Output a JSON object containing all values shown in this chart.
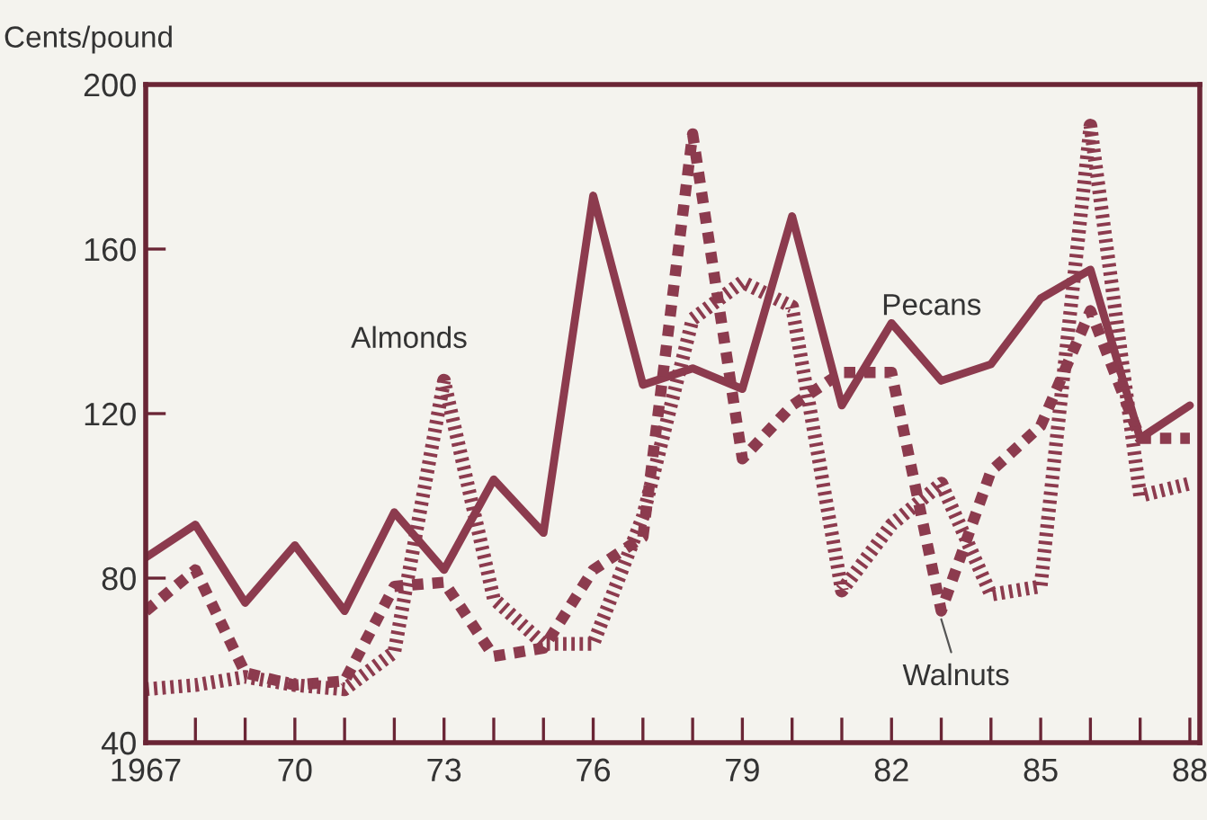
{
  "chart_data": {
    "type": "line",
    "ylabel": "Cents/pound",
    "x": [
      1967,
      1968,
      1969,
      1970,
      1971,
      1972,
      1973,
      1974,
      1975,
      1976,
      1977,
      1978,
      1979,
      1980,
      1981,
      1982,
      1983,
      1984,
      1985,
      1986,
      1987,
      1988
    ],
    "series": [
      {
        "name": "Pecans",
        "color": "#8c3b4e",
        "line_style": "solid",
        "values": [
          85,
          93,
          74,
          88,
          72,
          96,
          82,
          104,
          91,
          173,
          127,
          131,
          126,
          168,
          122,
          142,
          128,
          132,
          148,
          155,
          114,
          122
        ]
      },
      {
        "name": "Walnuts",
        "color": "#8c3b4e",
        "line_style": "dashed",
        "values": [
          72,
          82,
          57,
          54,
          55,
          78,
          79,
          61,
          63,
          82,
          90,
          188,
          109,
          122,
          130,
          130,
          72,
          106,
          117,
          145,
          114,
          114
        ]
      },
      {
        "name": "Almonds",
        "color": "#8c3b4e",
        "line_style": "dotted",
        "values": [
          53,
          54,
          56,
          54,
          53,
          62,
          128,
          75,
          64,
          64,
          95,
          143,
          152,
          146,
          77,
          93,
          103,
          76,
          78,
          190,
          100,
          103
        ]
      }
    ],
    "xlim": [
      1967,
      1988.2
    ],
    "ylim": [
      40,
      200
    ],
    "xticks": [
      {
        "value": 1967,
        "label": "1967"
      },
      {
        "value": 1968,
        "label": null
      },
      {
        "value": 1969,
        "label": null
      },
      {
        "value": 1970,
        "label": "70"
      },
      {
        "value": 1971,
        "label": null
      },
      {
        "value": 1972,
        "label": null
      },
      {
        "value": 1973,
        "label": "73"
      },
      {
        "value": 1974,
        "label": null
      },
      {
        "value": 1975,
        "label": null
      },
      {
        "value": 1976,
        "label": "76"
      },
      {
        "value": 1977,
        "label": null
      },
      {
        "value": 1978,
        "label": null
      },
      {
        "value": 1979,
        "label": "79"
      },
      {
        "value": 1980,
        "label": null
      },
      {
        "value": 1981,
        "label": null
      },
      {
        "value": 1982,
        "label": "82"
      },
      {
        "value": 1983,
        "label": null
      },
      {
        "value": 1984,
        "label": null
      },
      {
        "value": 1985,
        "label": "85"
      },
      {
        "value": 1986,
        "label": null
      },
      {
        "value": 1987,
        "label": null
      },
      {
        "value": 1988,
        "label": "88"
      }
    ],
    "yticks": [
      40,
      80,
      120,
      160,
      200
    ],
    "grid": false,
    "legend": false
  }
}
